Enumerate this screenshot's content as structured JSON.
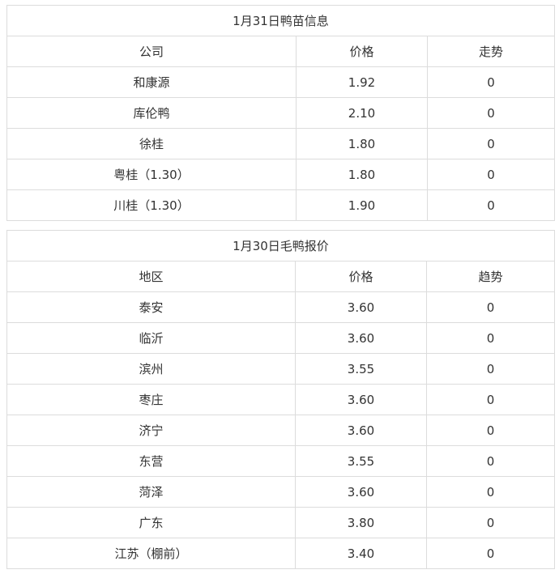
{
  "duckling_table": {
    "title": "1月31日鸭苗信息",
    "headers": [
      "公司",
      "价格",
      "走势"
    ],
    "rows": [
      [
        "和康源",
        "1.92",
        "0"
      ],
      [
        "库伦鸭",
        "2.10",
        "0"
      ],
      [
        "徐桂",
        "1.80",
        "0"
      ],
      [
        "粤桂（1.30）",
        "1.80",
        "0"
      ],
      [
        "川桂（1.30）",
        "1.90",
        "0"
      ]
    ]
  },
  "duck_table": {
    "title": "1月30日毛鸭报价",
    "headers": [
      "地区",
      "价格",
      "趋势"
    ],
    "rows": [
      [
        "泰安",
        "3.60",
        "0"
      ],
      [
        "临沂",
        "3.60",
        "0"
      ],
      [
        "滨州",
        "3.55",
        "0"
      ],
      [
        "枣庄",
        "3.60",
        "0"
      ],
      [
        "济宁",
        "3.60",
        "0"
      ],
      [
        "东营",
        "3.55",
        "0"
      ],
      [
        "菏泽",
        "3.60",
        "0"
      ],
      [
        "广东",
        "3.80",
        "0"
      ],
      [
        "江苏（棚前）",
        "3.40",
        "0"
      ]
    ]
  }
}
